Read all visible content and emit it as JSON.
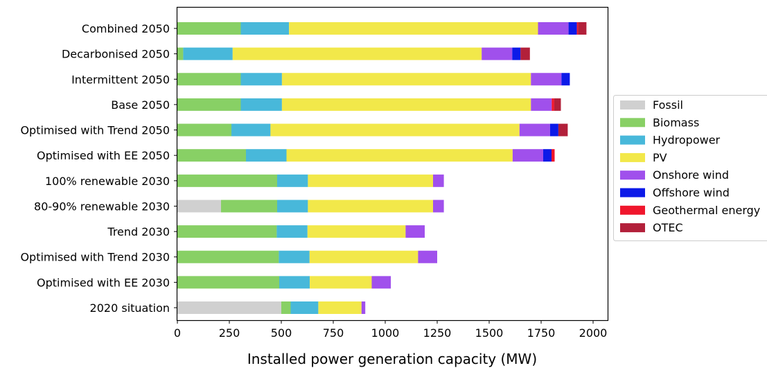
{
  "chart_data": {
    "type": "bar",
    "orientation": "horizontal",
    "stacked": true,
    "title": "",
    "xlabel": "Installed power generation capacity (MW)",
    "ylabel": "",
    "xlim": [
      0,
      2070
    ],
    "xticks": [
      0,
      250,
      500,
      750,
      1000,
      1250,
      1500,
      1750,
      2000
    ],
    "grid": false,
    "legend_position": "right",
    "categories": [
      "Combined 2050",
      "Decarbonised 2050",
      "Intermittent 2050",
      "Base 2050",
      "Optimised with Trend 2050",
      "Optimised with EE 2050",
      "100% renewable 2030",
      "80-90% renewable 2030",
      "Trend 2030",
      "Optimised with Trend 2030",
      "Optimised with EE 2030",
      "2020 situation"
    ],
    "series": [
      {
        "name": "Fossil",
        "color": "#d0d0d0",
        "values": [
          0,
          0,
          0,
          0,
          0,
          0,
          0,
          210,
          0,
          0,
          0,
          500
        ]
      },
      {
        "name": "Biomass",
        "color": "#88d065",
        "values": [
          305,
          28,
          305,
          305,
          260,
          330,
          480,
          270,
          478,
          488,
          490,
          45
        ]
      },
      {
        "name": "Hydropower",
        "color": "#48b8da",
        "values": [
          232,
          238,
          198,
          198,
          188,
          195,
          148,
          148,
          148,
          148,
          147,
          133
        ]
      },
      {
        "name": "PV",
        "color": "#f2e84a",
        "values": [
          1198,
          1198,
          1198,
          1198,
          1198,
          1088,
          602,
          602,
          472,
          522,
          298,
          208
        ]
      },
      {
        "name": "Onshore wind",
        "color": "#a050ec",
        "values": [
          147,
          147,
          147,
          100,
          147,
          147,
          52,
          52,
          92,
          92,
          92,
          18
        ]
      },
      {
        "name": "Offshore wind",
        "color": "#0c1ae8",
        "values": [
          40,
          40,
          40,
          0,
          40,
          40,
          0,
          0,
          0,
          0,
          0,
          0
        ]
      },
      {
        "name": "Geothermal energy",
        "color": "#f0162c",
        "values": [
          6,
          0,
          0,
          12,
          0,
          15,
          0,
          0,
          0,
          0,
          0,
          0
        ]
      },
      {
        "name": "OTEC",
        "color": "#b2203a",
        "values": [
          40,
          45,
          0,
          32,
          45,
          0,
          0,
          0,
          0,
          0,
          0,
          0
        ]
      }
    ]
  }
}
